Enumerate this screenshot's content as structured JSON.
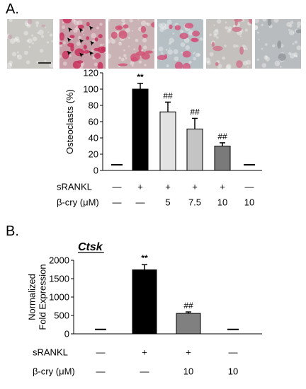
{
  "panel_a": {
    "label": "A."
  },
  "panel_b": {
    "label": "B.",
    "gene_label": "Ctsk"
  },
  "micrographs": [
    {
      "name": "micrograph-control",
      "bg": "#c9c7c2",
      "stain": "#c9a9b2",
      "count": 3,
      "arrows": 0,
      "scale_bar": true
    },
    {
      "name": "micrograph-srankl",
      "bg": "#c89fa8",
      "stain": "#c82a58",
      "count": 22,
      "arrows": 9,
      "scale_bar": false
    },
    {
      "name": "micrograph-bcry-5",
      "bg": "#c9b3b5",
      "stain": "#d24f73",
      "count": 15,
      "arrows": 0,
      "scale_bar": false
    },
    {
      "name": "micrograph-bcry-7-5",
      "bg": "#b6bfc3",
      "stain": "#d3507a",
      "count": 12,
      "arrows": 0,
      "scale_bar": false
    },
    {
      "name": "micrograph-bcry-10",
      "bg": "#c3c0bd",
      "stain": "#d07188",
      "count": 9,
      "arrows": 0,
      "scale_bar": false
    },
    {
      "name": "micrograph-bcry-only",
      "bg": "#b9bcbe",
      "stain": "#8f9599",
      "count": 4,
      "arrows": 0,
      "scale_bar": false
    }
  ],
  "chart_data": [
    {
      "type": "bar",
      "panel": "A.",
      "ylabel": "Osteoclasts (%)",
      "ylim": [
        0,
        120
      ],
      "yticks": [
        "0",
        "20",
        "40",
        "60",
        "80",
        "100",
        "120"
      ],
      "values": [
        7,
        100,
        72,
        51,
        30,
        7
      ],
      "errors": [
        0,
        7,
        12,
        13,
        4,
        0
      ],
      "colors": [
        "#000000",
        "#000000",
        "#e2e2e2",
        "#c4c4c4",
        "#7a7a7a",
        "#000000"
      ],
      "baseline_dash": [
        true,
        false,
        false,
        false,
        false,
        true
      ],
      "annotations": [
        "",
        "**",
        "##",
        "##",
        "##",
        ""
      ],
      "rows": [
        {
          "label": "sRANKL",
          "values": [
            "—",
            "+",
            "+",
            "+",
            "+",
            "—"
          ]
        },
        {
          "label": "β-cry (μM)",
          "values": [
            "—",
            "—",
            "5",
            "7.5",
            "10",
            "10"
          ]
        }
      ]
    },
    {
      "type": "bar",
      "panel": "B.",
      "title": "Ctsk",
      "ylabel": "Normalized Fold Expression",
      "ylabel_lines": [
        "Normalized",
        "Fold Expression"
      ],
      "ylim": [
        0,
        2000
      ],
      "yticks": [
        "0",
        "500",
        "1000",
        "1500",
        "2000"
      ],
      "values": [
        120,
        1740,
        555,
        120
      ],
      "errors": [
        0,
        140,
        40,
        0
      ],
      "colors": [
        "#000000",
        "#000000",
        "#808080",
        "#000000"
      ],
      "baseline_dash": [
        true,
        false,
        false,
        true
      ],
      "annotations": [
        "",
        "**",
        "##",
        ""
      ],
      "rows": [
        {
          "label": "sRANKL",
          "values": [
            "—",
            "+",
            "+",
            "—"
          ]
        },
        {
          "label": "β-cry (μM)",
          "values": [
            "—",
            "—",
            "10",
            "10"
          ]
        }
      ]
    }
  ]
}
